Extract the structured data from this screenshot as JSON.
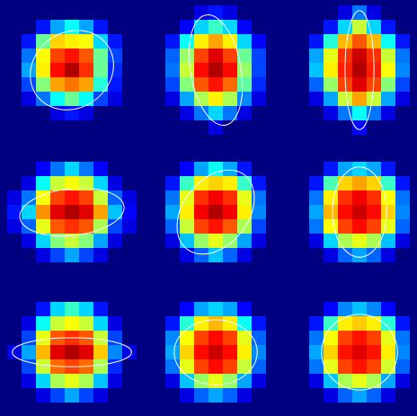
{
  "figure": {
    "background_color": "#000080",
    "ellipse_color": "#ffffff",
    "colormap": "jet",
    "grid": {
      "rows": 3,
      "cols": 3
    },
    "panels": [
      {
        "id": "r1c1",
        "grid": [
          [
            0,
            0,
            0,
            0,
            0,
            0,
            0,
            0,
            0
          ],
          [
            0,
            0,
            0.1,
            0.25,
            0.35,
            0.25,
            0.1,
            0,
            0
          ],
          [
            0,
            0.1,
            0.45,
            0.65,
            0.62,
            0.6,
            0.3,
            0.1,
            0
          ],
          [
            0,
            0.2,
            0.6,
            0.8,
            0.85,
            0.78,
            0.45,
            0.15,
            0
          ],
          [
            0,
            0.25,
            0.62,
            0.86,
            0.95,
            0.82,
            0.45,
            0.12,
            0
          ],
          [
            0,
            0.15,
            0.48,
            0.7,
            0.75,
            0.7,
            0.38,
            0.1,
            0
          ],
          [
            0,
            0.05,
            0.2,
            0.35,
            0.45,
            0.35,
            0.15,
            0.05,
            0
          ],
          [
            0,
            0,
            0,
            0.05,
            0.1,
            0.05,
            0,
            0,
            0
          ],
          [
            0,
            0,
            0,
            0,
            0,
            0,
            0,
            0,
            0
          ]
        ],
        "ellipse": {
          "rx_frac": 0.12,
          "ry_frac": 0.105,
          "angle": -35
        }
      },
      {
        "id": "r1c2",
        "grid": [
          [
            0,
            0,
            0,
            0.05,
            0.1,
            0.05,
            0,
            0,
            0
          ],
          [
            0,
            0,
            0.08,
            0.3,
            0.4,
            0.3,
            0.08,
            0,
            0
          ],
          [
            0,
            0.1,
            0.35,
            0.62,
            0.7,
            0.62,
            0.3,
            0.08,
            0
          ],
          [
            0,
            0.18,
            0.5,
            0.8,
            0.9,
            0.8,
            0.45,
            0.15,
            0
          ],
          [
            0,
            0.2,
            0.55,
            0.86,
            0.95,
            0.86,
            0.5,
            0.15,
            0
          ],
          [
            0,
            0.15,
            0.48,
            0.78,
            0.85,
            0.76,
            0.44,
            0.12,
            0
          ],
          [
            0,
            0.05,
            0.25,
            0.52,
            0.62,
            0.52,
            0.22,
            0.05,
            0
          ],
          [
            0,
            0,
            0.05,
            0.2,
            0.3,
            0.2,
            0.05,
            0,
            0
          ],
          [
            0,
            0,
            0,
            0,
            0.05,
            0,
            0,
            0,
            0
          ]
        ],
        "ellipse": {
          "rx_frac": 0.07,
          "ry_frac": 0.155,
          "angle": -10
        }
      },
      {
        "id": "r1c3",
        "grid": [
          [
            0,
            0,
            0,
            0.05,
            0.2,
            0.05,
            0,
            0,
            0
          ],
          [
            0,
            0,
            0.1,
            0.3,
            0.55,
            0.3,
            0.1,
            0,
            0
          ],
          [
            0,
            0.1,
            0.38,
            0.68,
            0.78,
            0.68,
            0.35,
            0.1,
            0
          ],
          [
            0,
            0.25,
            0.58,
            0.82,
            0.92,
            0.82,
            0.55,
            0.2,
            0
          ],
          [
            0,
            0.28,
            0.62,
            0.84,
            0.95,
            0.84,
            0.6,
            0.22,
            0
          ],
          [
            0,
            0.18,
            0.5,
            0.8,
            0.9,
            0.8,
            0.48,
            0.15,
            0
          ],
          [
            0,
            0.05,
            0.25,
            0.55,
            0.7,
            0.55,
            0.25,
            0.05,
            0
          ],
          [
            0,
            0,
            0.05,
            0.2,
            0.35,
            0.2,
            0.05,
            0,
            0
          ],
          [
            0,
            0,
            0,
            0,
            0.08,
            0,
            0,
            0,
            0
          ]
        ],
        "ellipse": {
          "rx_frac": 0.04,
          "ry_frac": 0.165,
          "angle": 0
        }
      },
      {
        "id": "r2c1",
        "grid": [
          [
            0,
            0,
            0,
            0,
            0,
            0,
            0,
            0,
            0
          ],
          [
            0,
            0,
            0.08,
            0.2,
            0.3,
            0.2,
            0.08,
            0,
            0
          ],
          [
            0,
            0.05,
            0.35,
            0.55,
            0.6,
            0.55,
            0.3,
            0.05,
            0
          ],
          [
            0.05,
            0.2,
            0.6,
            0.8,
            0.85,
            0.8,
            0.55,
            0.18,
            0.05
          ],
          [
            0.1,
            0.3,
            0.72,
            0.9,
            0.95,
            0.9,
            0.7,
            0.28,
            0.08
          ],
          [
            0.05,
            0.18,
            0.58,
            0.78,
            0.82,
            0.78,
            0.52,
            0.15,
            0.05
          ],
          [
            0,
            0.05,
            0.3,
            0.48,
            0.55,
            0.48,
            0.25,
            0.05,
            0
          ],
          [
            0,
            0,
            0.05,
            0.15,
            0.25,
            0.15,
            0.05,
            0,
            0
          ],
          [
            0,
            0,
            0,
            0,
            0,
            0,
            0,
            0,
            0
          ]
        ],
        "ellipse": {
          "rx_frac": 0.145,
          "ry_frac": 0.065,
          "angle": -6
        }
      },
      {
        "id": "r2c2",
        "grid": [
          [
            0,
            0,
            0,
            0,
            0,
            0,
            0,
            0,
            0
          ],
          [
            0,
            0,
            0.08,
            0.25,
            0.35,
            0.25,
            0.1,
            0,
            0
          ],
          [
            0,
            0.1,
            0.4,
            0.62,
            0.65,
            0.62,
            0.4,
            0.1,
            0
          ],
          [
            0,
            0.2,
            0.58,
            0.82,
            0.88,
            0.82,
            0.58,
            0.2,
            0
          ],
          [
            0,
            0.25,
            0.62,
            0.88,
            0.95,
            0.88,
            0.62,
            0.22,
            0
          ],
          [
            0,
            0.18,
            0.55,
            0.8,
            0.85,
            0.78,
            0.52,
            0.15,
            0
          ],
          [
            0,
            0.05,
            0.28,
            0.5,
            0.58,
            0.5,
            0.25,
            0.05,
            0
          ],
          [
            0,
            0,
            0.05,
            0.18,
            0.28,
            0.18,
            0.05,
            0,
            0
          ],
          [
            0,
            0,
            0,
            0,
            0,
            0,
            0,
            0,
            0
          ]
        ],
        "ellipse": {
          "rx_frac": 0.09,
          "ry_frac": 0.13,
          "angle": 38
        }
      },
      {
        "id": "r2c3",
        "grid": [
          [
            0,
            0,
            0,
            0,
            0,
            0,
            0,
            0,
            0
          ],
          [
            0,
            0,
            0.1,
            0.25,
            0.3,
            0.25,
            0.1,
            0,
            0
          ],
          [
            0,
            0.1,
            0.42,
            0.65,
            0.7,
            0.65,
            0.4,
            0.1,
            0
          ],
          [
            0,
            0.2,
            0.62,
            0.82,
            0.88,
            0.82,
            0.6,
            0.2,
            0
          ],
          [
            0,
            0.25,
            0.68,
            0.86,
            0.92,
            0.86,
            0.65,
            0.22,
            0
          ],
          [
            0,
            0.2,
            0.6,
            0.8,
            0.86,
            0.8,
            0.58,
            0.18,
            0
          ],
          [
            0,
            0.05,
            0.3,
            0.52,
            0.58,
            0.52,
            0.28,
            0.05,
            0
          ],
          [
            0,
            0,
            0.05,
            0.18,
            0.25,
            0.18,
            0.05,
            0,
            0
          ],
          [
            0,
            0,
            0,
            0,
            0,
            0,
            0,
            0,
            0
          ]
        ],
        "ellipse": {
          "rx_frac": 0.075,
          "ry_frac": 0.125,
          "angle": 0
        }
      },
      {
        "id": "r3c1",
        "grid": [
          [
            0,
            0,
            0,
            0,
            0,
            0,
            0,
            0,
            0
          ],
          [
            0,
            0,
            0.1,
            0.3,
            0.4,
            0.3,
            0.1,
            0,
            0
          ],
          [
            0,
            0.05,
            0.35,
            0.55,
            0.6,
            0.55,
            0.3,
            0.05,
            0
          ],
          [
            0,
            0.15,
            0.58,
            0.78,
            0.82,
            0.78,
            0.55,
            0.15,
            0
          ],
          [
            0.05,
            0.25,
            0.68,
            0.9,
            0.95,
            0.9,
            0.66,
            0.22,
            0.05
          ],
          [
            0,
            0.15,
            0.55,
            0.76,
            0.8,
            0.76,
            0.52,
            0.12,
            0
          ],
          [
            0,
            0.05,
            0.3,
            0.52,
            0.58,
            0.52,
            0.28,
            0.05,
            0
          ],
          [
            0,
            0,
            0.05,
            0.15,
            0.25,
            0.15,
            0.05,
            0,
            0
          ],
          [
            0,
            0,
            0,
            0,
            0,
            0,
            0,
            0,
            0
          ]
        ],
        "ellipse": {
          "rx_frac": 0.165,
          "ry_frac": 0.04,
          "angle": 0
        }
      },
      {
        "id": "r3c2",
        "grid": [
          [
            0,
            0,
            0,
            0,
            0,
            0,
            0,
            0,
            0
          ],
          [
            0,
            0,
            0.08,
            0.25,
            0.3,
            0.25,
            0.08,
            0,
            0
          ],
          [
            0,
            0.1,
            0.38,
            0.62,
            0.68,
            0.62,
            0.35,
            0.1,
            0
          ],
          [
            0,
            0.22,
            0.6,
            0.8,
            0.86,
            0.8,
            0.58,
            0.18,
            0
          ],
          [
            0,
            0.25,
            0.65,
            0.86,
            0.92,
            0.86,
            0.62,
            0.22,
            0
          ],
          [
            0,
            0.2,
            0.58,
            0.8,
            0.86,
            0.8,
            0.55,
            0.18,
            0
          ],
          [
            0,
            0.05,
            0.28,
            0.5,
            0.58,
            0.5,
            0.25,
            0.05,
            0
          ],
          [
            0,
            0,
            0.05,
            0.18,
            0.25,
            0.18,
            0.05,
            0,
            0
          ],
          [
            0,
            0,
            0,
            0,
            0,
            0,
            0,
            0,
            0
          ]
        ],
        "ellipse": {
          "rx_frac": 0.115,
          "ry_frac": 0.09,
          "angle": 0
        }
      },
      {
        "id": "r3c3",
        "grid": [
          [
            0,
            0,
            0,
            0,
            0,
            0,
            0,
            0,
            0
          ],
          [
            0,
            0,
            0.08,
            0.22,
            0.28,
            0.22,
            0.08,
            0,
            0
          ],
          [
            0,
            0.1,
            0.4,
            0.62,
            0.66,
            0.62,
            0.38,
            0.1,
            0
          ],
          [
            0,
            0.2,
            0.6,
            0.8,
            0.85,
            0.8,
            0.58,
            0.2,
            0
          ],
          [
            0,
            0.25,
            0.65,
            0.85,
            0.9,
            0.85,
            0.62,
            0.22,
            0
          ],
          [
            0,
            0.2,
            0.58,
            0.8,
            0.85,
            0.8,
            0.56,
            0.18,
            0
          ],
          [
            0,
            0.05,
            0.28,
            0.52,
            0.58,
            0.52,
            0.25,
            0.05,
            0
          ],
          [
            0,
            0,
            0.05,
            0.18,
            0.25,
            0.18,
            0.05,
            0,
            0
          ],
          [
            0,
            0,
            0,
            0,
            0,
            0,
            0,
            0,
            0
          ]
        ],
        "ellipse": {
          "rx_frac": 0.105,
          "ry_frac": 0.105,
          "angle": 0
        }
      }
    ]
  }
}
